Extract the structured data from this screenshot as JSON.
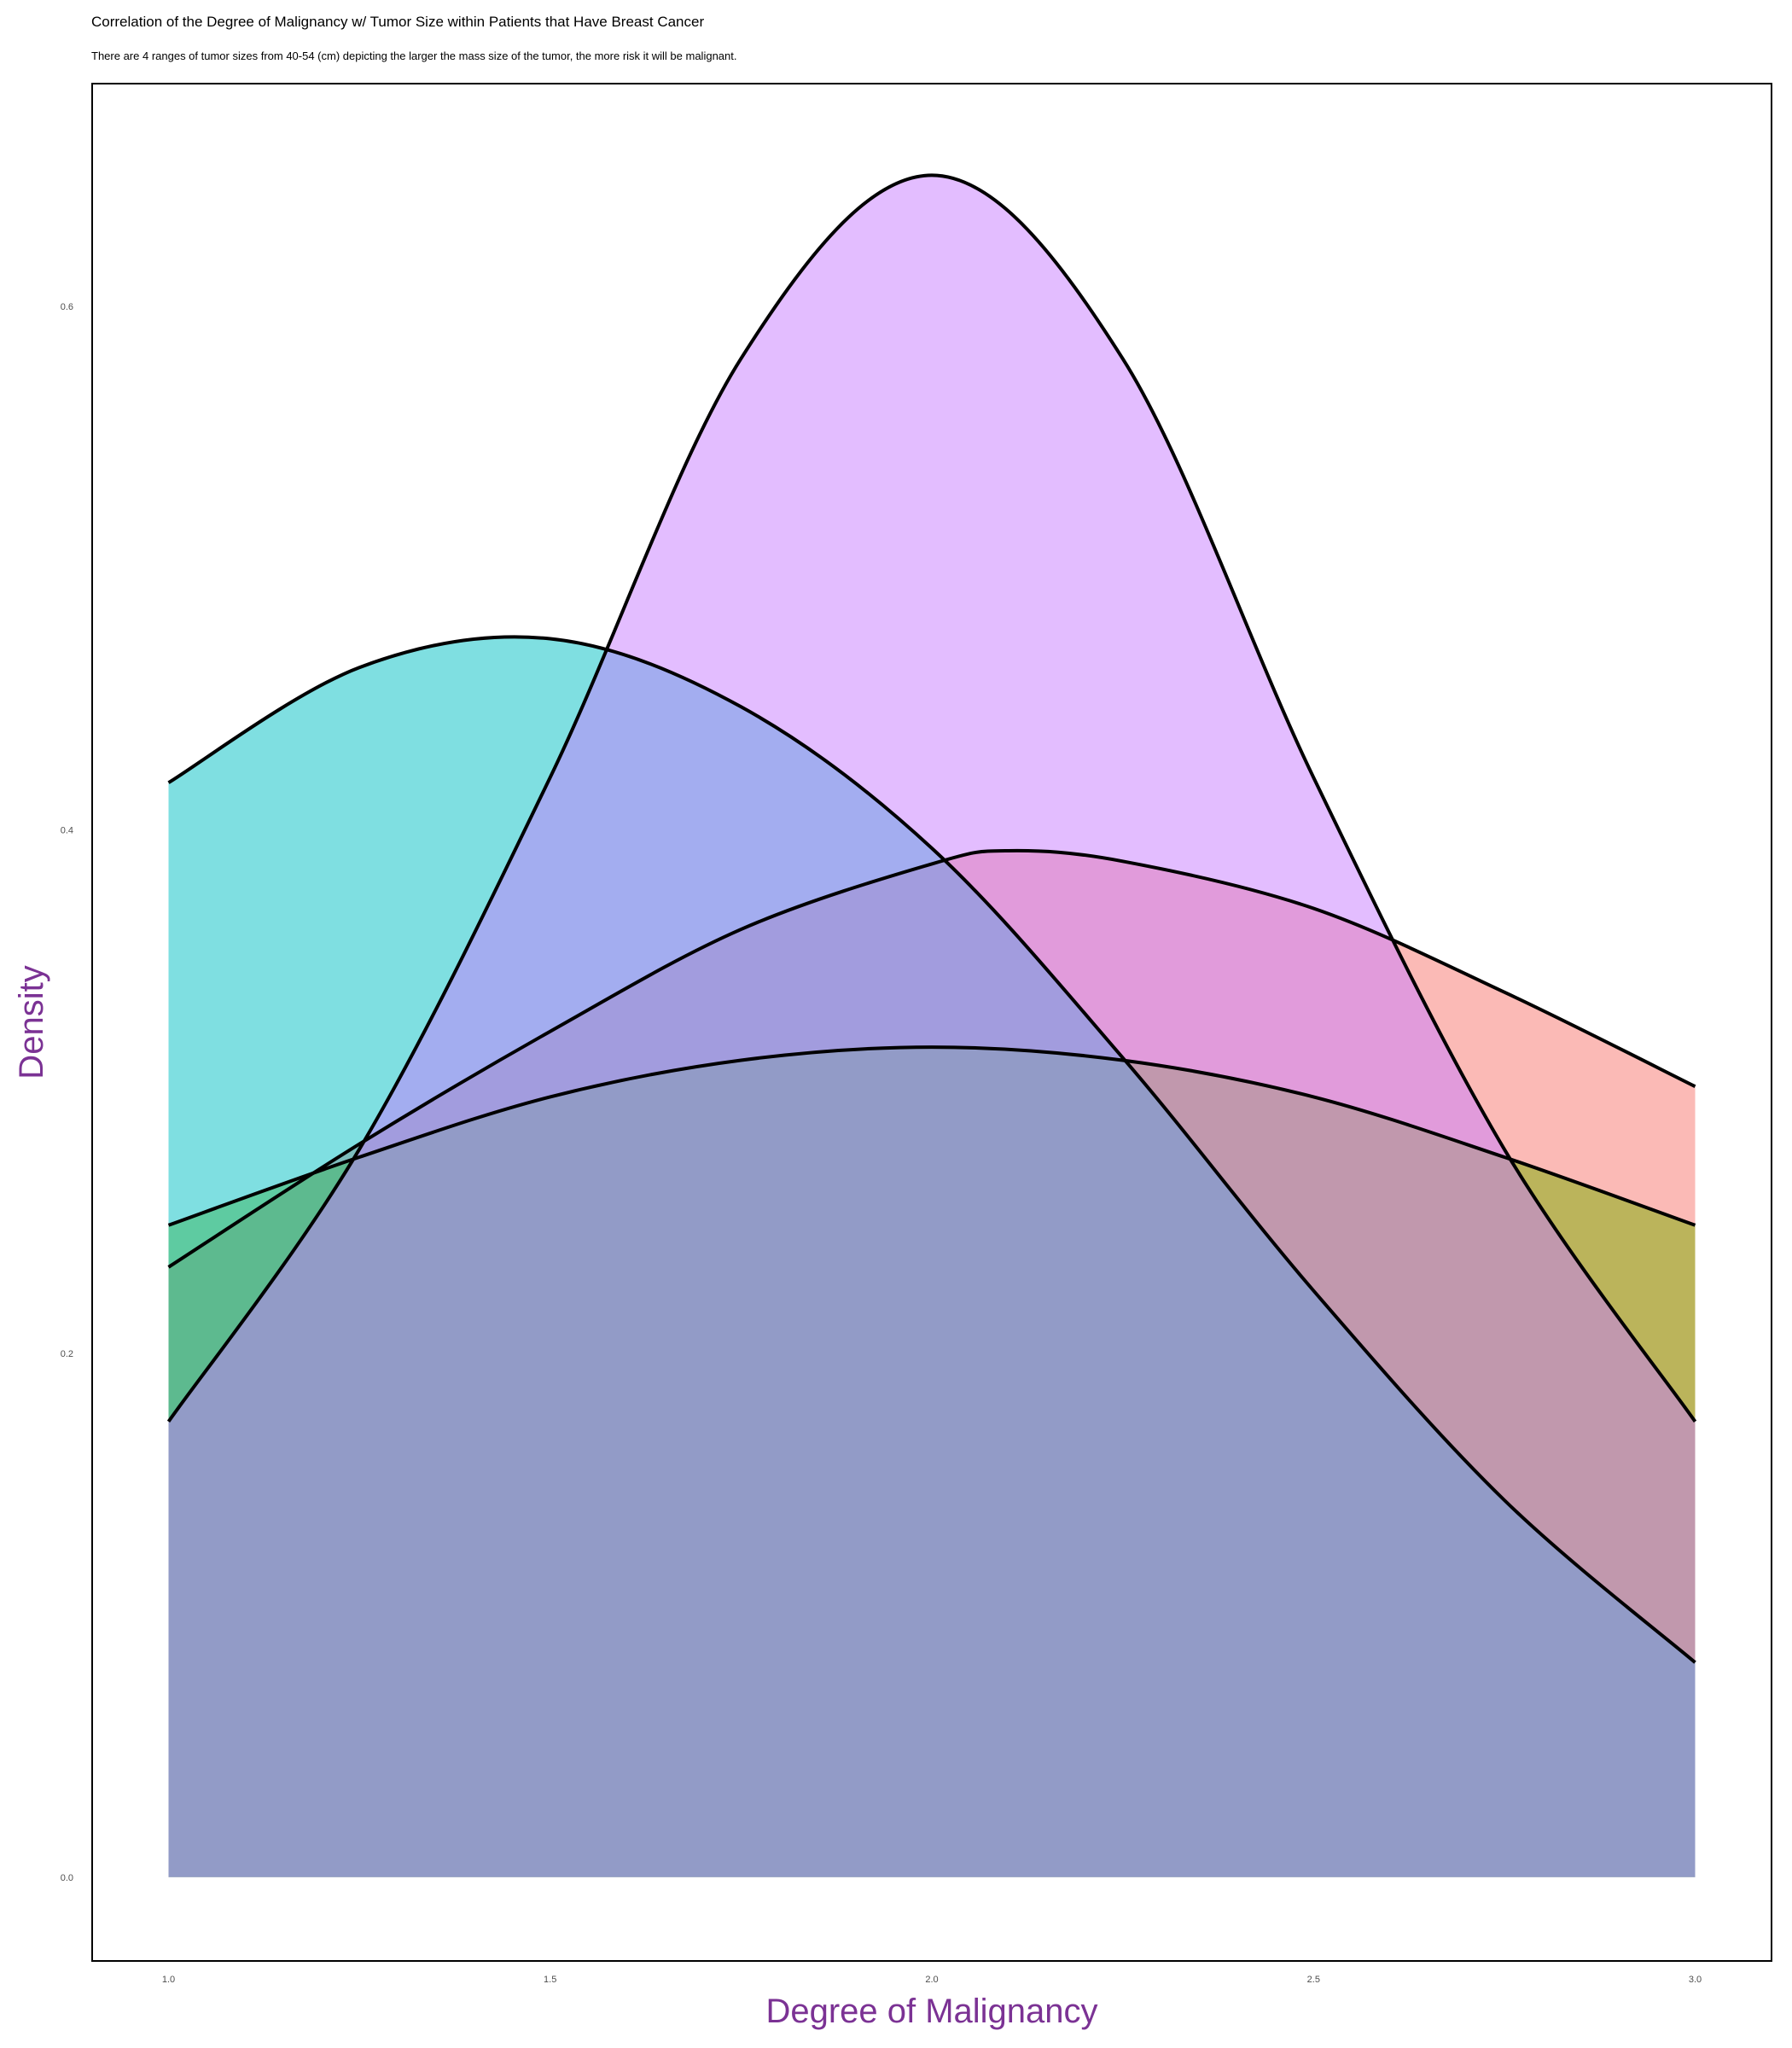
{
  "title": "Correlation of the Degree of Malignancy w/ Tumor Size within Patients that Have Breast Cancer",
  "subtitle": "There are 4 ranges of tumor sizes from 40-54 (cm) depicting the larger the mass size of the tumor, the more risk it will be malignant.",
  "chart_data": {
    "type": "area",
    "xlabel": "Degree of Malignancy",
    "ylabel": "Density",
    "xlim": [
      0.9,
      3.1
    ],
    "ylim": [
      -0.032,
      0.685
    ],
    "xticks": [
      "1.0",
      "1.5",
      "2.0",
      "2.5",
      "3.0"
    ],
    "yticks": [
      "0.0",
      "0.2",
      "0.4",
      "0.6"
    ],
    "grid": false,
    "legend": "none",
    "axis_title_color": "#7b3294",
    "series": [
      {
        "color": "#f8766d",
        "outline": "#000000",
        "x": [
          1.0,
          1.25,
          1.5,
          1.75,
          2.0,
          2.1,
          2.25,
          2.5,
          2.75,
          3.0
        ],
        "y": [
          0.233,
          0.28,
          0.323,
          0.362,
          0.387,
          0.392,
          0.388,
          0.37,
          0.338,
          0.302
        ]
      },
      {
        "color": "#7cae00",
        "outline": "#000000",
        "x": [
          1.0,
          1.25,
          1.5,
          1.75,
          2.0,
          2.25,
          2.5,
          2.75,
          3.0
        ],
        "y": [
          0.249,
          0.275,
          0.298,
          0.312,
          0.317,
          0.312,
          0.298,
          0.275,
          0.249
        ]
      },
      {
        "color": "#00bfc4",
        "outline": "#000000",
        "x": [
          1.0,
          1.25,
          1.5,
          1.75,
          2.0,
          2.25,
          2.5,
          2.75,
          3.0
        ],
        "y": [
          0.418,
          0.462,
          0.473,
          0.447,
          0.393,
          0.313,
          0.224,
          0.144,
          0.082
        ]
      },
      {
        "color": "#c77cff",
        "outline": "#000000",
        "x": [
          1.0,
          1.25,
          1.5,
          1.75,
          2.0,
          2.25,
          2.5,
          2.75,
          3.0
        ],
        "y": [
          0.174,
          0.278,
          0.42,
          0.58,
          0.65,
          0.58,
          0.42,
          0.278,
          0.174
        ]
      }
    ]
  }
}
